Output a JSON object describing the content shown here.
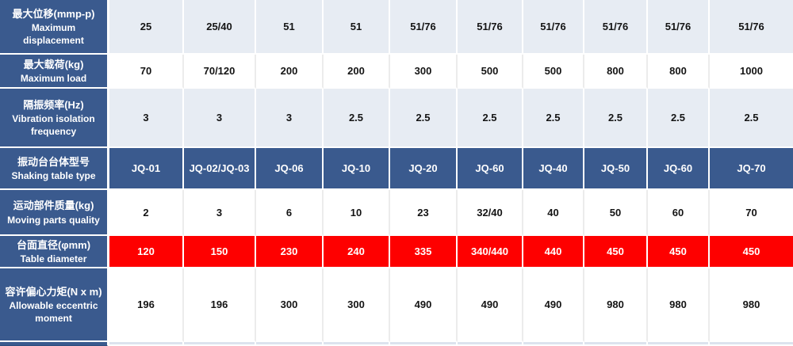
{
  "table": {
    "colors": {
      "header_blue": "#3a5a8e",
      "light_row": "#e7ecf3",
      "red_row": "#fe0000",
      "white_row": "#ffffff",
      "partial_row": "#dce3ee",
      "header_text": "#ffffff",
      "value_text": "#141414"
    },
    "rows": [
      {
        "id": "max-displacement",
        "label_zh": "最大位移(mmp-p)",
        "label_en": "Maximum displacement",
        "variant": "light",
        "values": [
          "25",
          "25/40",
          "51",
          "51",
          "51/76",
          "51/76",
          "51/76",
          "51/76",
          "51/76",
          "51/76"
        ]
      },
      {
        "id": "max-load",
        "label_zh": "最大载荷(kg)",
        "label_en": "Maximum load",
        "variant": "white",
        "values": [
          "70",
          "70/120",
          "200",
          "200",
          "300",
          "500",
          "500",
          "800",
          "800",
          "1000"
        ]
      },
      {
        "id": "vibration-isolation-frequency",
        "label_zh": "隔振频率(Hz)",
        "label_en": "Vibration isolation frequency",
        "variant": "light",
        "values": [
          "3",
          "3",
          "3",
          "2.5",
          "2.5",
          "2.5",
          "2.5",
          "2.5",
          "2.5",
          "2.5"
        ]
      },
      {
        "id": "shaking-table-type",
        "label_zh": "振动台台体型号",
        "label_en": "Shaking table type",
        "variant": "blue",
        "values": [
          "JQ-01",
          "JQ-02/JQ-03",
          "JQ-06",
          "JQ-10",
          "JQ-20",
          "JQ-60",
          "JQ-40",
          "JQ-50",
          "JQ-60",
          "JQ-70"
        ]
      },
      {
        "id": "moving-parts-quality",
        "label_zh": "运动部件质量(kg)",
        "label_en": "Moving parts quality",
        "variant": "white",
        "values": [
          "2",
          "3",
          "6",
          "10",
          "23",
          "32/40",
          "40",
          "50",
          "60",
          "70"
        ]
      },
      {
        "id": "table-diameter",
        "label_zh": "台面直径(φmm)",
        "label_en": "Table diameter",
        "variant": "red",
        "values": [
          "120",
          "150",
          "230",
          "240",
          "335",
          "340/440",
          "440",
          "450",
          "450",
          "450"
        ]
      },
      {
        "id": "allowable-eccentric-moment",
        "label_zh": "容许偏心力矩(N x m)",
        "label_en": "Allowable eccentric moment",
        "variant": "white",
        "values": [
          "196",
          "196",
          "300",
          "300",
          "490",
          "490",
          "490",
          "980",
          "980",
          "980"
        ]
      }
    ]
  }
}
